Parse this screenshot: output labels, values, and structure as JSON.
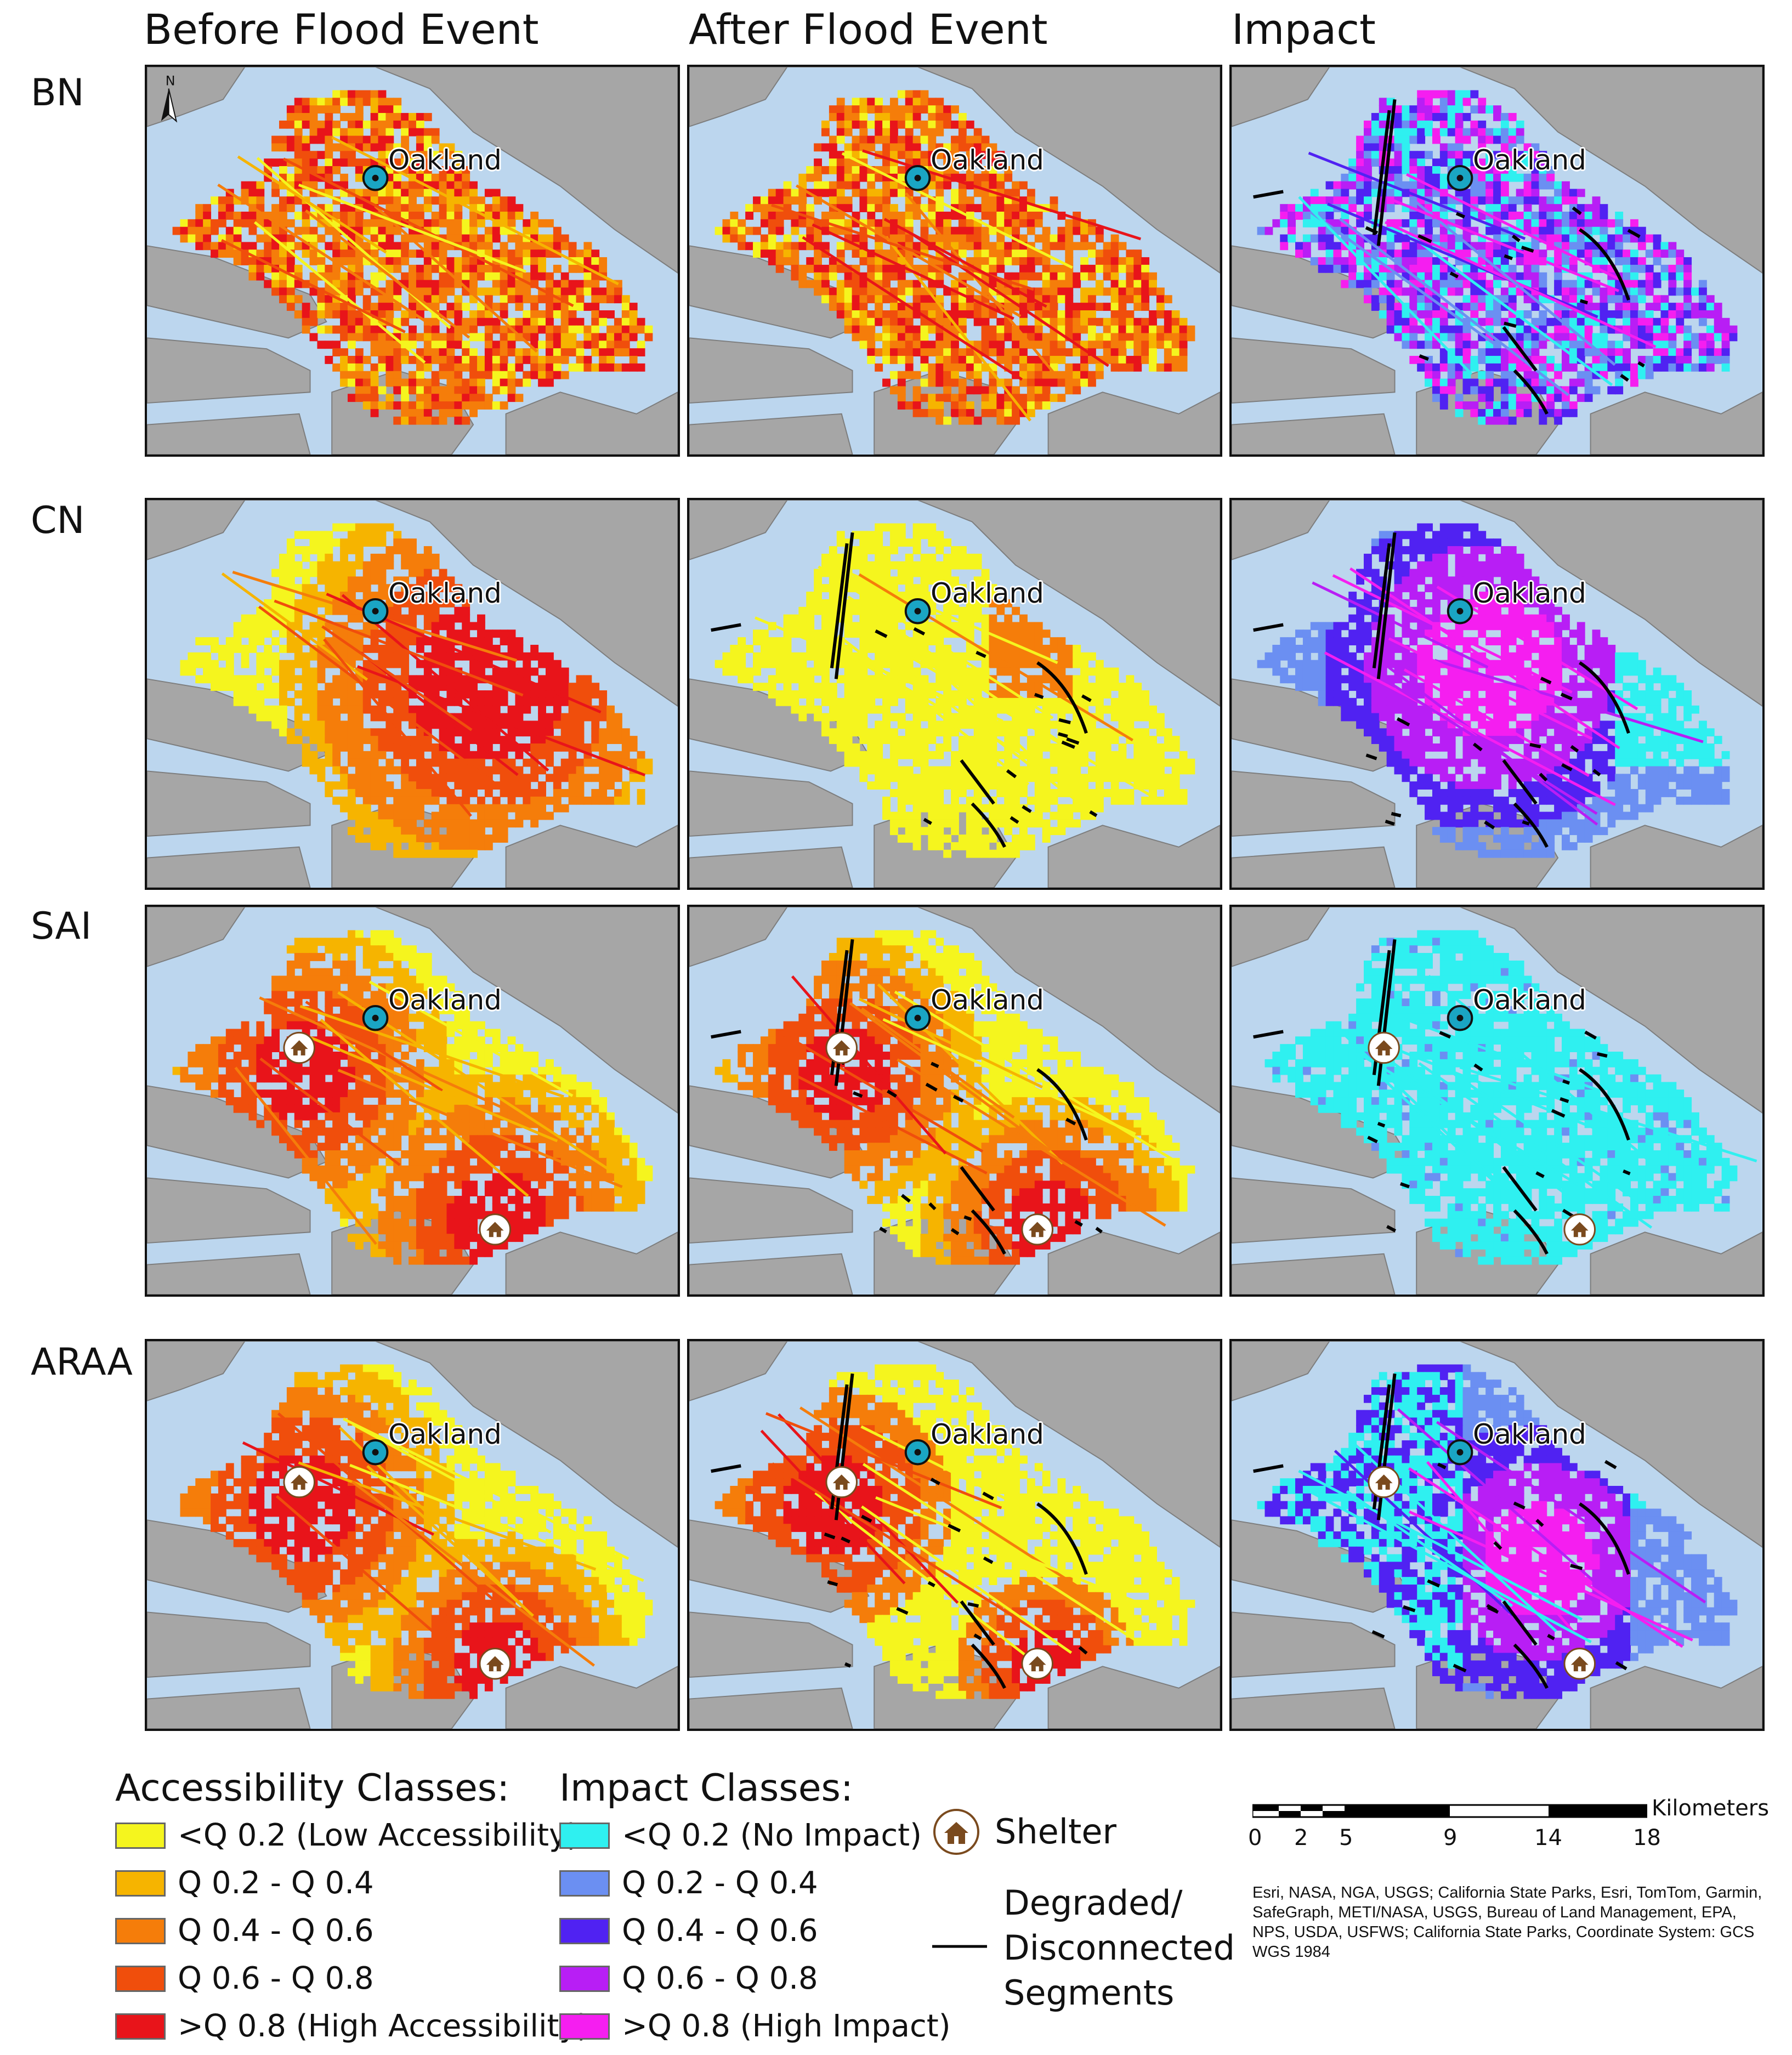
{
  "columns": [
    "Before Flood Event",
    "After Flood Event",
    "Impact"
  ],
  "rows": [
    {
      "label": "BN",
      "panels": [
        "before-bn",
        "after-bn",
        "impact-bn"
      ]
    },
    {
      "label": "CN",
      "panels": [
        "before-cn",
        "after-cn",
        "impact-cn"
      ]
    },
    {
      "label": "SAI",
      "panels": [
        "before-sai",
        "after-sai",
        "impact-sai"
      ]
    },
    {
      "label": "ARAA",
      "panels": [
        "before-araa",
        "after-araa",
        "impact-araa"
      ]
    }
  ],
  "map": {
    "city_label": "Oakland",
    "north_label": "N",
    "water_color": "#bcd6ee",
    "land_color": "#a6a6a6",
    "disconnected_color": "#000000"
  },
  "legend": {
    "accessibility_title": "Accessibility Classes:",
    "accessibility_classes": [
      {
        "label": "<Q 0.2 (Low Accessibility)",
        "color": "#f5f51e"
      },
      {
        "label": "Q 0.2 - Q 0.4",
        "color": "#f6b400"
      },
      {
        "label": "Q 0.4 - Q 0.6",
        "color": "#f57d0a"
      },
      {
        "label": "Q 0.6 - Q 0.8",
        "color": "#f04e0c"
      },
      {
        "label": ">Q 0.8 (High Accessibility)",
        "color": "#e8141a"
      }
    ],
    "impact_title": "Impact Classes:",
    "impact_classes": [
      {
        "label": "<Q 0.2 (No Impact)",
        "color": "#2ff0f0"
      },
      {
        "label": "Q 0.2 - Q 0.4",
        "color": "#6b8ff2"
      },
      {
        "label": "Q 0.4 - Q 0.6",
        "color": "#5022f2"
      },
      {
        "label": "Q 0.6 - Q 0.8",
        "color": "#b81ef5"
      },
      {
        "label": ">Q 0.8 (High Impact)",
        "color": "#f51ef0"
      }
    ],
    "shelter_label": "Shelter",
    "segments_label": [
      "Degraded/",
      "Disconnected",
      "Segments"
    ]
  },
  "scale_bar": {
    "unit": "Kilometers",
    "ticks": [
      "0",
      "2",
      "5",
      "9",
      "14",
      "18"
    ]
  },
  "credits": "Esri, NASA, NGA, USGS; California State Parks, Esri, TomTom, Garmin, SafeGraph, METI/NASA, USGS, Bureau of Land Management, EPA, NPS, USDA, USFWS; California State Parks, Coordinate System: GCS WGS 1984"
}
